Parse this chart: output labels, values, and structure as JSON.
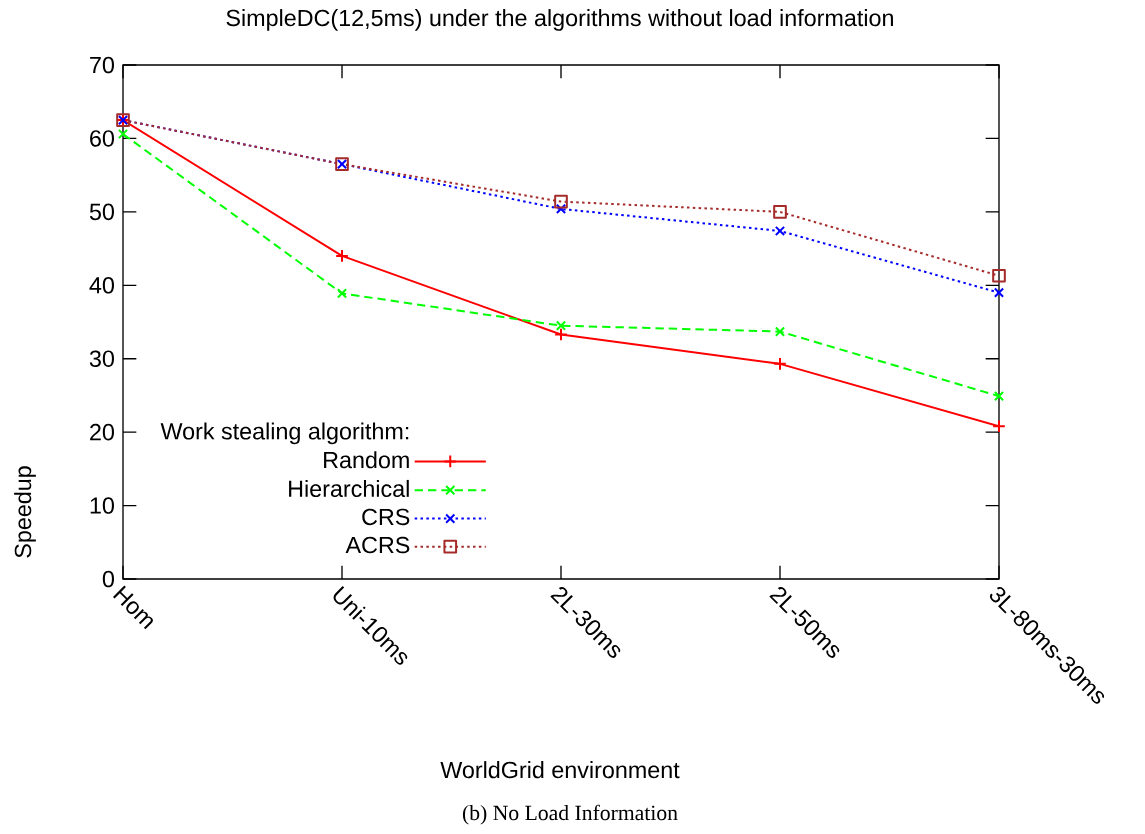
{
  "chart_data": {
    "type": "line",
    "title": "SimpleDC(12,5ms) under the algorithms without load information",
    "xlabel": "WorldGrid environment",
    "ylabel": "Speedup",
    "legend_title": "Work stealing algorithm:",
    "legend": "bottom left",
    "categories": [
      "Hom",
      "Uni-10ms",
      "2L-30ms",
      "2L-50ms",
      "3L-80ms-30ms"
    ],
    "series": [
      {
        "name": "Random",
        "color": "#ff0000",
        "marker": "plus",
        "line_style": "solid",
        "values": [
          62.5,
          44,
          33.3,
          29.3,
          20.8
        ]
      },
      {
        "name": "Hierarchical",
        "color": "#00ff00",
        "marker": "cross",
        "line_style": "dashed",
        "values": [
          60.6,
          38.9,
          34.5,
          33.7,
          24.9
        ]
      },
      {
        "name": "CRS",
        "color": "#0000ff",
        "marker": "cross",
        "line_style": "dotted",
        "values": [
          62.5,
          56.5,
          50.4,
          47.4,
          39
        ]
      },
      {
        "name": "ACRS",
        "color": "#a52a2a",
        "marker": "square",
        "line_style": "dotted",
        "values": [
          62.5,
          56.5,
          51.4,
          50,
          41.3
        ]
      }
    ],
    "ylim": [
      0,
      70
    ],
    "yticks": [
      0,
      10,
      20,
      30,
      40,
      50,
      60,
      70
    ],
    "annotations": [
      "(b) No Load Information"
    ]
  }
}
